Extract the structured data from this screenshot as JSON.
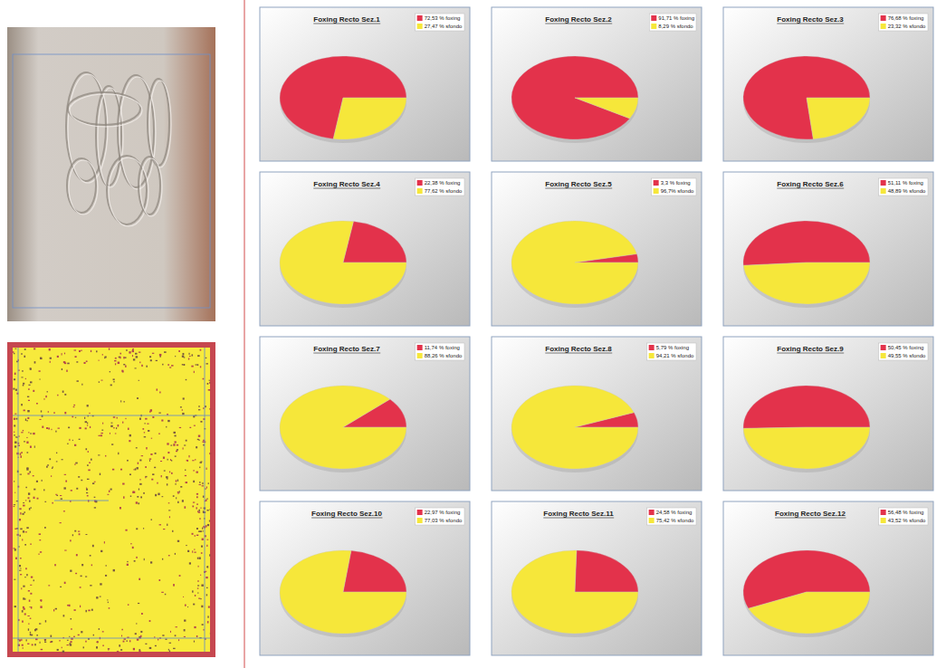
{
  "chart_data": [
    {
      "type": "pie",
      "title": "Foxing Recto Sez.1",
      "values": [
        72.53,
        27.47
      ],
      "value_labels": [
        "72,53 % foxing",
        "27,47 % sfondo"
      ],
      "colors": [
        "#e3324b",
        "#f6e73a"
      ],
      "legend": "top-right"
    },
    {
      "type": "pie",
      "title": "Foxing Recto Sez.2",
      "values": [
        91.71,
        8.29
      ],
      "value_labels": [
        "91,71 % foxing",
        "8,29 % sfondo"
      ],
      "colors": [
        "#e3324b",
        "#f6e73a"
      ],
      "legend": "top-right"
    },
    {
      "type": "pie",
      "title": "Foxing Recto Sez.3",
      "values": [
        76.68,
        23.32
      ],
      "value_labels": [
        "76,68 % foxing",
        "23,32 % sfondo"
      ],
      "colors": [
        "#e3324b",
        "#f6e73a"
      ],
      "legend": "top-right"
    },
    {
      "type": "pie",
      "title": "Foxing Recto Sez.4",
      "values": [
        22.38,
        77.62
      ],
      "value_labels": [
        "22,38 % foxing",
        "77,62 % sfondo"
      ],
      "colors": [
        "#e3324b",
        "#f6e73a"
      ],
      "legend": "top-right"
    },
    {
      "type": "pie",
      "title": "Foxing Recto Sez.5",
      "values": [
        3.3,
        96.7
      ],
      "value_labels": [
        "3,3 % foxing",
        "96,7% sfondo"
      ],
      "colors": [
        "#e3324b",
        "#f6e73a"
      ],
      "legend": "top-right"
    },
    {
      "type": "pie",
      "title": "Foxing Recto Sez.6",
      "values": [
        51.11,
        48.89
      ],
      "value_labels": [
        "51,11 % foxing",
        "48,89 % sfondo"
      ],
      "colors": [
        "#e3324b",
        "#f6e73a"
      ],
      "legend": "top-right"
    },
    {
      "type": "pie",
      "title": "Foxing Recto Sez.7",
      "values": [
        11.74,
        88.26
      ],
      "value_labels": [
        "11,74 % foxing",
        "88,26 % sfondo"
      ],
      "colors": [
        "#e3324b",
        "#f6e73a"
      ],
      "legend": "top-right"
    },
    {
      "type": "pie",
      "title": "Foxing Recto Sez.8",
      "values": [
        5.79,
        94.21
      ],
      "value_labels": [
        "5,79 % foxing",
        "94,21 % sfondo"
      ],
      "colors": [
        "#e3324b",
        "#f6e73a"
      ],
      "legend": "top-right"
    },
    {
      "type": "pie",
      "title": "Foxing Recto Sez.9",
      "values": [
        50.45,
        49.55
      ],
      "value_labels": [
        "50,45 % foxing",
        "49,55 % sfondo"
      ],
      "colors": [
        "#e3324b",
        "#f6e73a"
      ],
      "legend": "top-right"
    },
    {
      "type": "pie",
      "title": "Foxing Recto Sez.10",
      "values": [
        22.97,
        77.03
      ],
      "value_labels": [
        "22,97 % foxing",
        "77,03 % sfondo"
      ],
      "colors": [
        "#e3324b",
        "#f6e73a"
      ],
      "legend": "top-right"
    },
    {
      "type": "pie",
      "title": "Foxing Recto Sez.11",
      "values": [
        24.58,
        75.42
      ],
      "value_labels": [
        "24,58 % foxing",
        "75,42 % sfondo"
      ],
      "colors": [
        "#e3324b",
        "#f6e73a"
      ],
      "legend": "top-right"
    },
    {
      "type": "pie",
      "title": "Foxing Recto Sez.12",
      "values": [
        56.48,
        43.52
      ],
      "value_labels": [
        "56,48 % foxing",
        "43,52 % sfondo"
      ],
      "colors": [
        "#e3324b",
        "#f6e73a"
      ],
      "legend": "top-right"
    }
  ]
}
